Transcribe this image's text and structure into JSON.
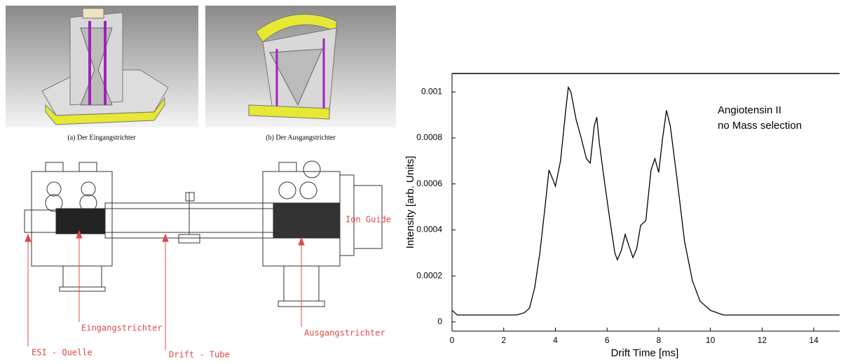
{
  "figure": {
    "panels": [
      {
        "caption": "(a) Der Eingangstrichter"
      },
      {
        "caption": "(b) Der Ausgangstrichter"
      }
    ],
    "drawing_labels": {
      "ion_guide": "Ion Guide",
      "esi": "ESI - Quelle",
      "entrance": "Eingangstrichter",
      "drift": "Drift - Tube",
      "exit": "Ausgangstrichter"
    }
  },
  "chart_data": {
    "type": "line",
    "x_label": "Drift Time [ms]",
    "y_label": "Intensity [arb. Units]",
    "annotations": [
      "Angiotensin II",
      "no Mass selection"
    ],
    "color": "#000000",
    "x": [
      0,
      0.1,
      0.2,
      0.5,
      1,
      1.5,
      2,
      2.5,
      2.8,
      3,
      3.2,
      3.4,
      3.6,
      3.75,
      3.9,
      4.0,
      4.2,
      4.4,
      4.5,
      4.6,
      4.8,
      5.0,
      5.2,
      5.35,
      5.5,
      5.6,
      5.7,
      5.9,
      6.1,
      6.3,
      6.4,
      6.55,
      6.7,
      6.85,
      7.0,
      7.15,
      7.3,
      7.5,
      7.7,
      7.85,
      8.0,
      8.15,
      8.3,
      8.45,
      8.7,
      9.0,
      9.3,
      9.6,
      10,
      10.5,
      11,
      12,
      13,
      14,
      15
    ],
    "values": [
      5e-05,
      4e-05,
      3e-05,
      3e-05,
      3e-05,
      3e-05,
      3e-05,
      3e-05,
      4e-05,
      6e-05,
      0.00015,
      0.0003,
      0.0005,
      0.00066,
      0.00062,
      0.00059,
      0.0007,
      0.00092,
      0.00102,
      0.001,
      0.00088,
      0.0008,
      0.00071,
      0.00069,
      0.00085,
      0.00089,
      0.00078,
      0.00061,
      0.00045,
      0.0003,
      0.00027,
      0.00031,
      0.00038,
      0.00033,
      0.00028,
      0.00032,
      0.00042,
      0.00044,
      0.00066,
      0.00071,
      0.00065,
      0.0008,
      0.00092,
      0.00085,
      0.00063,
      0.00035,
      0.00018,
      9e-05,
      5e-05,
      3e-05,
      3e-05,
      3e-05,
      3e-05,
      3e-05,
      3e-05
    ],
    "xlim": [
      0,
      15
    ],
    "ylim": [
      -4e-05,
      0.00108
    ],
    "xticks": [
      0,
      2,
      4,
      6,
      8,
      10,
      12,
      14
    ],
    "yticks": [
      0,
      0.0002,
      0.0004,
      0.0006,
      0.0008,
      0.001
    ],
    "grid": false
  }
}
